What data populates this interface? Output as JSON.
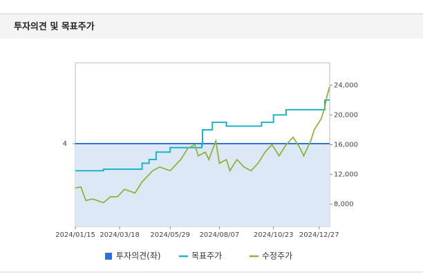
{
  "chart_data": {
    "type": "line",
    "title": "투자의견 및 목표주가",
    "xlim": [
      0,
      362
    ],
    "xticks": [
      {
        "value": 0,
        "label": "2024/01/15"
      },
      {
        "value": 63,
        "label": "2024/03/18"
      },
      {
        "value": 135,
        "label": "2024/05/29"
      },
      {
        "value": 205,
        "label": "2024/08/07"
      },
      {
        "value": 282,
        "label": "2024/10/23"
      },
      {
        "value": 347,
        "label": "2024/12/27"
      }
    ],
    "ylim": [
      2,
      5.95
    ],
    "yticks": [
      4
    ],
    "y2lim": [
      5000,
      27000
    ],
    "y2ticks": [
      {
        "value": 8000,
        "label": "8,000"
      },
      {
        "value": 12000,
        "label": "12,000"
      },
      {
        "value": 16000,
        "label": "16,000"
      },
      {
        "value": 20000,
        "label": "20,000"
      },
      {
        "value": 24000,
        "label": "24,000"
      }
    ],
    "series": [
      {
        "name": "투자의견(좌)",
        "color": "#2f6fd6",
        "fill": "#dde8f7",
        "axis": "y",
        "x": [
          0,
          362
        ],
        "values": [
          4,
          4
        ]
      },
      {
        "name": "목표주가",
        "color": "#1bb5c8",
        "axis": "y2",
        "step": true,
        "x": [
          0,
          40,
          85,
          95,
          105,
          115,
          135,
          180,
          181,
          195,
          215,
          265,
          282,
          300,
          355,
          362
        ],
        "values": [
          12500,
          12700,
          12700,
          13500,
          14000,
          15000,
          15600,
          16000,
          18000,
          19000,
          18500,
          19000,
          20000,
          20700,
          22000,
          22000
        ]
      },
      {
        "name": "수정주가",
        "color": "#8db33a",
        "axis": "y2",
        "x": [
          0,
          8,
          15,
          25,
          40,
          50,
          60,
          70,
          85,
          95,
          110,
          120,
          135,
          150,
          160,
          170,
          175,
          185,
          190,
          200,
          205,
          215,
          220,
          230,
          240,
          250,
          260,
          270,
          280,
          290,
          300,
          310,
          320,
          325,
          335,
          340,
          350,
          355,
          358,
          362
        ],
        "values": [
          10200,
          10300,
          8500,
          8700,
          8200,
          9000,
          9000,
          10000,
          9500,
          11000,
          12500,
          13000,
          12500,
          14000,
          15500,
          16000,
          14500,
          15000,
          14000,
          16500,
          13500,
          14000,
          12500,
          14000,
          13000,
          12500,
          13500,
          15000,
          16000,
          14500,
          16000,
          17000,
          15500,
          14500,
          16500,
          18000,
          19500,
          21000,
          22500,
          23800
        ]
      }
    ]
  }
}
